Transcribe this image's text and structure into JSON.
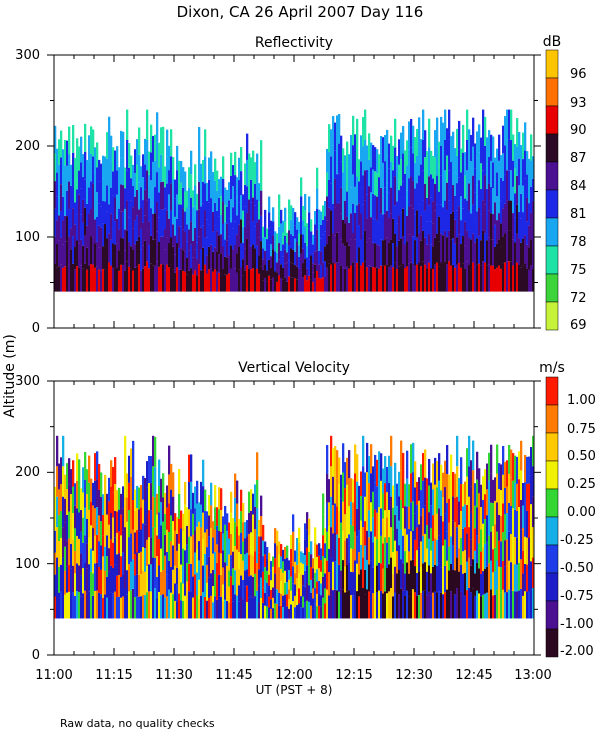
{
  "chart_data": {
    "type": "heatmap",
    "title": "Dixon, CA 26 April 2007  Day 116",
    "footnote": "Raw data, no quality checks",
    "ylabel": "Altitude (m)",
    "xlabel": "UT  (PST + 8)",
    "x_ticks": [
      "11:00",
      "11:15",
      "11:30",
      "11:45",
      "12:00",
      "12:15",
      "12:30",
      "12:45",
      "13:00"
    ],
    "xlim_minutes": [
      0,
      120
    ],
    "panels": [
      {
        "name": "reflectivity",
        "title": "Reflectivity",
        "unit": "dB",
        "ylim": [
          0,
          300
        ],
        "y_ticks": [
          "0",
          "100",
          "200",
          "300"
        ],
        "colorbar_labels": [
          "96",
          "93",
          "90",
          "87",
          "84",
          "81",
          "78",
          "75",
          "72",
          "69"
        ],
        "colorbar_colors": [
          "#ffc400",
          "#ff7000",
          "#e80000",
          "#2a0a24",
          "#4b0f92",
          "#1d28e6",
          "#19a7f2",
          "#1fe3a6",
          "#3cd43a",
          "#c6f23a"
        ],
        "data_bottom_m": 40,
        "echo_top_m": [
          {
            "start_min": 0,
            "end_min": 30,
            "top_m": 200
          },
          {
            "start_min": 30,
            "end_min": 52,
            "top_m": 170
          },
          {
            "start_min": 52,
            "end_min": 68,
            "top_m": 125
          },
          {
            "start_min": 68,
            "end_min": 120,
            "top_m": 210
          }
        ]
      },
      {
        "name": "vertical-velocity",
        "title": "Vertical Velocity",
        "unit": "m/s",
        "ylim": [
          0,
          300
        ],
        "y_ticks": [
          "0",
          "100",
          "200",
          "300"
        ],
        "colorbar_labels": [
          "1.00",
          "0.75",
          "0.50",
          "0.25",
          "0.00",
          "-0.25",
          "-0.50",
          "-0.75",
          "-1.00",
          "-2.00"
        ],
        "colorbar_colors": [
          "#ff1a00",
          "#ff7a00",
          "#ffc800",
          "#f0f000",
          "#33d633",
          "#15aee6",
          "#1e3ce8",
          "#1e1ec8",
          "#4b0f92",
          "#2a0820"
        ],
        "data_bottom_m": 40,
        "echo_top_m": [
          {
            "start_min": 0,
            "end_min": 30,
            "top_m": 200
          },
          {
            "start_min": 30,
            "end_min": 52,
            "top_m": 170
          },
          {
            "start_min": 52,
            "end_min": 68,
            "top_m": 125
          },
          {
            "start_min": 68,
            "end_min": 120,
            "top_m": 210
          }
        ]
      }
    ]
  }
}
